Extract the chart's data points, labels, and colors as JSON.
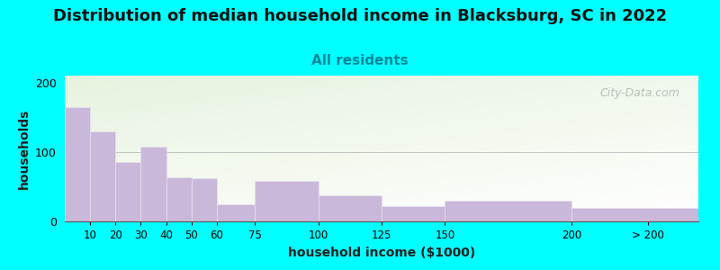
{
  "title": "Distribution of median household income in Blacksburg, SC in 2022",
  "subtitle": "All residents",
  "xlabel": "household income ($1000)",
  "ylabel": "households",
  "background_outer": "#00FFFF",
  "bar_color": "#C9B8D9",
  "bar_edge_color": "#E8E0F0",
  "categories": [
    "10",
    "20",
    "30",
    "40",
    "50",
    "60",
    "75",
    "100",
    "125",
    "150",
    "200",
    "> 200"
  ],
  "values": [
    165,
    130,
    85,
    108,
    63,
    62,
    25,
    58,
    38,
    22,
    30,
    20
  ],
  "ylim": [
    0,
    210
  ],
  "yticks": [
    0,
    100,
    200
  ],
  "title_fontsize": 13,
  "subtitle_fontsize": 11,
  "axis_label_fontsize": 10,
  "watermark_text": "City-Data.com",
  "bg_color_top_left": "#D8EED0",
  "bg_color_top_right": "#F5FFF5",
  "bg_color_bottom": "#FAFFF8"
}
